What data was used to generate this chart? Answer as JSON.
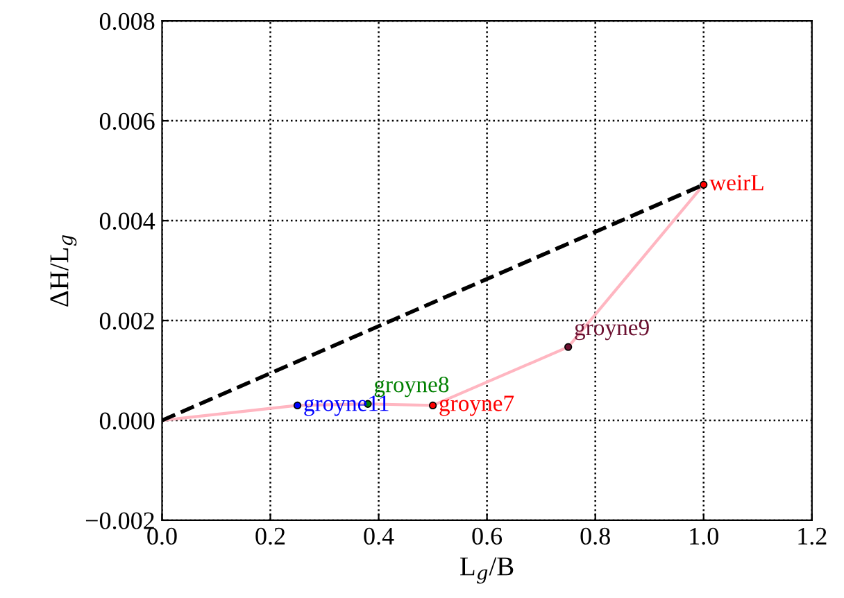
{
  "chart_data": {
    "type": "line",
    "xlabel": "L$_{g}$/B",
    "ylabel": "ΔH/L$_{g}$",
    "series": [
      {
        "color": "#ffb6c1",
        "line_style": "solid",
        "x": [
          0.0,
          0.25,
          0.38,
          0.5,
          0.75,
          1.0
        ],
        "values": [
          0.0,
          0.0003,
          0.00033,
          0.0003,
          0.00147,
          0.00472
        ]
      },
      {
        "color": "#000000",
        "line_style": "dashed",
        "x": [
          0.0,
          1.0
        ],
        "values": [
          0.0,
          0.00472
        ]
      },
      {
        "type": "scatter",
        "name": "groyne11",
        "marker": "circle",
        "color": "#0000ff",
        "x": [
          0.25
        ],
        "values": [
          0.0003
        ]
      },
      {
        "type": "scatter",
        "name": "groyne8",
        "marker": "circle",
        "color": "#008000",
        "x": [
          0.38
        ],
        "values": [
          0.00033
        ]
      },
      {
        "type": "scatter",
        "name": "groyne7",
        "marker": "circle",
        "color": "#ff0000",
        "x": [
          0.5
        ],
        "values": [
          0.0003
        ]
      },
      {
        "type": "scatter",
        "name": "groyne9",
        "marker": "circle",
        "color": "#6b1030",
        "x": [
          0.75
        ],
        "values": [
          0.00147
        ]
      },
      {
        "type": "scatter",
        "name": "weirL",
        "marker": "circle",
        "color": "#ff0000",
        "x": [
          1.0
        ],
        "values": [
          0.00472
        ]
      }
    ],
    "xlim": [
      0.0,
      1.2
    ],
    "xticks": [
      {
        "value": 0,
        "label": "0.0"
      },
      0.2,
      0.4,
      0.6,
      0.8,
      {
        "value": 1,
        "label": "1.0"
      },
      1.2
    ],
    "ylim": [
      -0.002,
      0.008
    ],
    "yticks": [
      {
        "value": -0.002,
        "label": "−0.002"
      },
      {
        "value": 0,
        "label": "0.000"
      },
      {
        "value": 0.002,
        "label": "0.002"
      },
      {
        "value": 0.004,
        "label": "0.004"
      },
      {
        "value": 0.006,
        "label": "0.006"
      },
      {
        "value": 0.008,
        "label": "0.008"
      }
    ],
    "grid": true
  }
}
